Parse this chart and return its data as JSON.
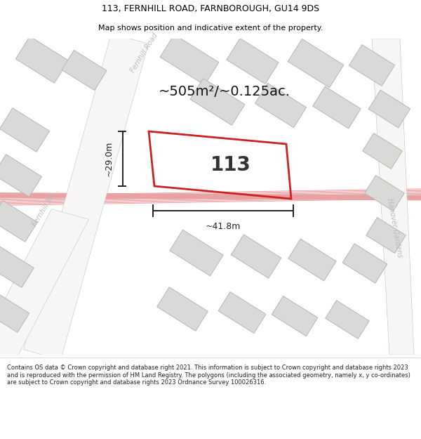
{
  "title_line1": "113, FERNHILL ROAD, FARNBOROUGH, GU14 9DS",
  "title_line2": "Map shows position and indicative extent of the property.",
  "area_text": "~505m²/~0.125ac.",
  "property_label": "113",
  "width_label": "~41.8m",
  "height_label": "~29.0m",
  "road_label_left": "Fernhill Ro...",
  "road_label_top": "Fernhill Road",
  "road_label_right": "Hanover Gardens",
  "footer_text": "Contains OS data © Crown copyright and database right 2021. This information is subject to Crown copyright and database rights 2023 and is reproduced with the permission of HM Land Registry. The polygons (including the associated geometry, namely x, y co-ordinates) are subject to Crown copyright and database rights 2023 Ordnance Survey 100026316.",
  "bg_color": "#ffffff",
  "map_bg": "#eeecea",
  "building_fill": "#dbd9d7",
  "building_edge": "#b8b4b0",
  "cadastral_color": "#e8a0a0",
  "highlight_color": "#cc2222",
  "dim_color": "#222222",
  "road_label_color": "#aaaaaa",
  "footer_bg": "#ffffff",
  "title_bg": "#ffffff",
  "title_fontsize": 9,
  "subtitle_fontsize": 8,
  "area_fontsize": 14,
  "label_fontsize": 20,
  "dim_fontsize": 9,
  "road_fontsize": 7
}
